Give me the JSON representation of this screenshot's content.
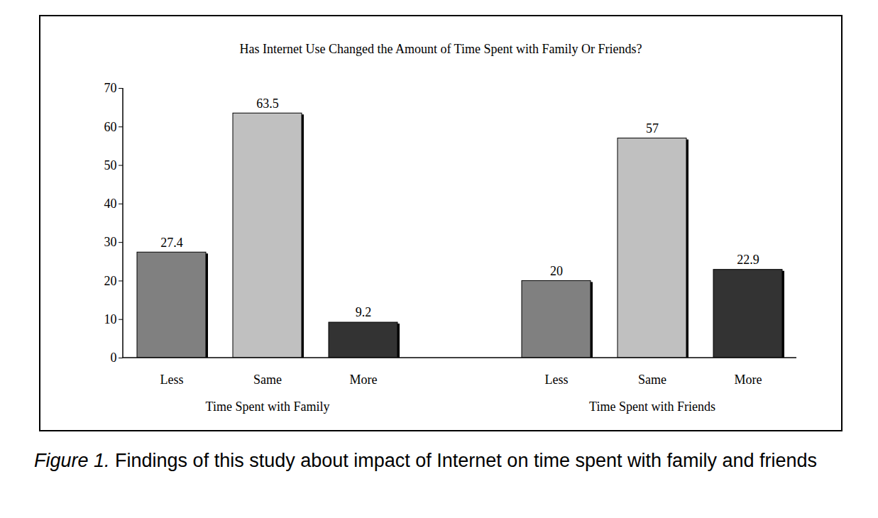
{
  "chart_data": {
    "type": "bar",
    "title": "Has Internet Use Changed the Amount of Time Spent with Family Or Friends?",
    "categories": [
      "Less",
      "Same",
      "More"
    ],
    "series": [
      {
        "name": "Time Spent with Family",
        "values": [
          27.4,
          63.5,
          9.2
        ]
      },
      {
        "name": "Time Spent with Friends",
        "values": [
          20,
          57,
          22.9
        ]
      }
    ],
    "colors": [
      "#808080",
      "#c0c0c0",
      "#333333"
    ],
    "ylim": [
      0,
      70
    ],
    "yticks": [
      0,
      10,
      20,
      30,
      40,
      50,
      60,
      70
    ],
    "grid": false,
    "data_labels": true,
    "caption": "Figure 1. Findings of this study about impact of Internet on time spent with family and friends"
  }
}
